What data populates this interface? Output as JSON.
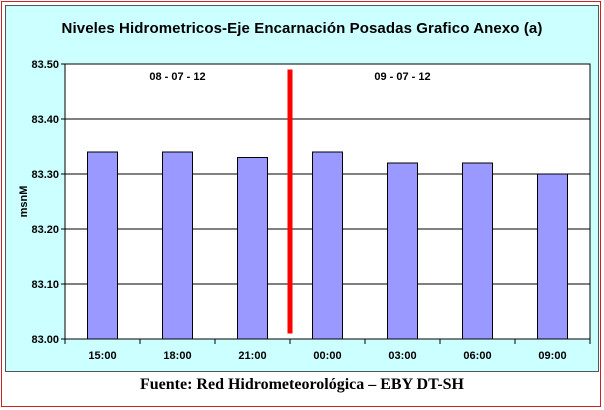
{
  "chart_data": {
    "type": "bar",
    "title": "Niveles Hidrometricos-Eje Encarnación Posadas Grafico Anexo (a)",
    "ylabel": "msnM",
    "xlabel": "",
    "categories": [
      "15:00",
      "18:00",
      "21:00",
      "00:00",
      "03:00",
      "06:00",
      "09:00"
    ],
    "values": [
      83.34,
      83.34,
      83.33,
      83.34,
      83.32,
      83.32,
      83.3
    ],
    "ylim": [
      83.0,
      83.5
    ],
    "yticks": [
      "83.00",
      "83.10",
      "83.20",
      "83.30",
      "83.40",
      "83.50"
    ],
    "grid": "horizontal",
    "bar_color": "#9999ff",
    "plot_background": "#ffffff",
    "chart_background": "#ccffff",
    "annotations": [
      {
        "text": "08 - 07 - 12",
        "near_category": "18:00"
      },
      {
        "text": "09 - 07 - 12",
        "near_category": "03:00"
      }
    ],
    "divider": {
      "between": [
        "21:00",
        "00:00"
      ],
      "color": "#ff0000"
    }
  },
  "footer": "Fuente: Red Hidrometeorológica  – EBY DT-SH"
}
